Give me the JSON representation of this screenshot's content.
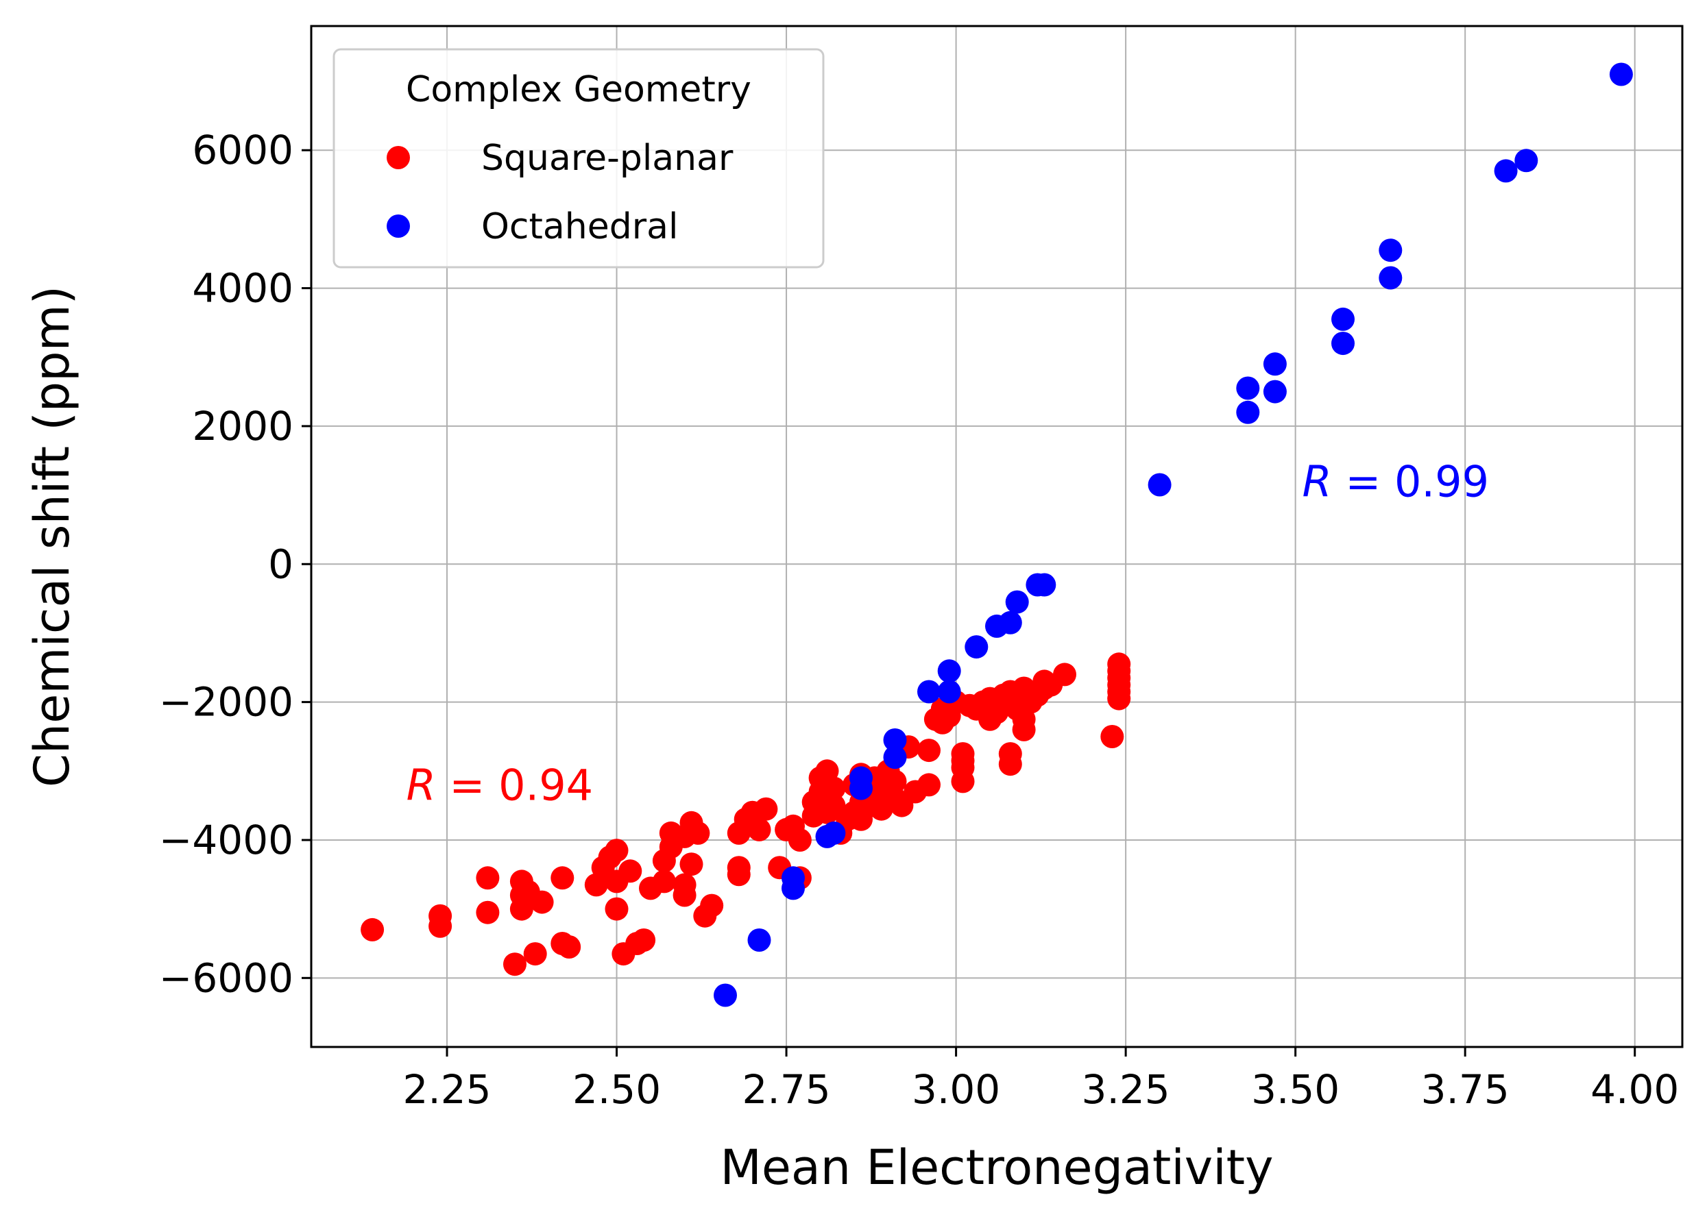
{
  "chart_data": {
    "type": "scatter",
    "xlabel": "Mean Electronegativity",
    "ylabel": "Chemical shift (ppm)",
    "xlim": [
      2.05,
      4.07
    ],
    "ylim": [
      -7000,
      7800
    ],
    "xticks": [
      2.25,
      2.5,
      2.75,
      3.0,
      3.25,
      3.5,
      3.75,
      4.0
    ],
    "xtick_labels": [
      "2.25",
      "2.50",
      "2.75",
      "3.00",
      "3.25",
      "3.50",
      "3.75",
      "4.00"
    ],
    "yticks": [
      -6000,
      -4000,
      -2000,
      0,
      2000,
      4000,
      6000
    ],
    "ytick_labels": [
      "−6000",
      "−4000",
      "−2000",
      "0",
      "2000",
      "4000",
      "6000"
    ],
    "grid": true,
    "legend": {
      "title": "Complex Geometry",
      "placement": "top-left"
    },
    "series": [
      {
        "name": "Square-planar",
        "color": "#ff0000",
        "points": [
          [
            2.14,
            -5300
          ],
          [
            2.24,
            -5100
          ],
          [
            2.24,
            -5250
          ],
          [
            2.31,
            -4550
          ],
          [
            2.31,
            -5050
          ],
          [
            2.35,
            -5800
          ],
          [
            2.36,
            -4600
          ],
          [
            2.36,
            -4800
          ],
          [
            2.36,
            -5000
          ],
          [
            2.37,
            -4750
          ],
          [
            2.38,
            -5650
          ],
          [
            2.39,
            -4900
          ],
          [
            2.42,
            -5500
          ],
          [
            2.42,
            -4550
          ],
          [
            2.43,
            -5550
          ],
          [
            2.47,
            -4650
          ],
          [
            2.48,
            -4400
          ],
          [
            2.49,
            -4250
          ],
          [
            2.5,
            -4150
          ],
          [
            2.5,
            -4600
          ],
          [
            2.5,
            -5000
          ],
          [
            2.51,
            -5650
          ],
          [
            2.52,
            -4450
          ],
          [
            2.53,
            -5500
          ],
          [
            2.54,
            -5450
          ],
          [
            2.55,
            -4700
          ],
          [
            2.57,
            -4600
          ],
          [
            2.57,
            -4300
          ],
          [
            2.58,
            -3900
          ],
          [
            2.58,
            -4100
          ],
          [
            2.6,
            -3950
          ],
          [
            2.6,
            -4650
          ],
          [
            2.6,
            -4800
          ],
          [
            2.61,
            -3750
          ],
          [
            2.61,
            -4350
          ],
          [
            2.62,
            -3900
          ],
          [
            2.63,
            -5100
          ],
          [
            2.64,
            -4950
          ],
          [
            2.68,
            -3900
          ],
          [
            2.68,
            -4400
          ],
          [
            2.68,
            -4500
          ],
          [
            2.69,
            -3700
          ],
          [
            2.7,
            -3600
          ],
          [
            2.71,
            -3850
          ],
          [
            2.72,
            -3550
          ],
          [
            2.74,
            -4400
          ],
          [
            2.75,
            -3850
          ],
          [
            2.76,
            -3800
          ],
          [
            2.77,
            -4000
          ],
          [
            2.77,
            -4550
          ],
          [
            2.79,
            -3650
          ],
          [
            2.79,
            -3450
          ],
          [
            2.8,
            -3300
          ],
          [
            2.8,
            -3100
          ],
          [
            2.81,
            -3000
          ],
          [
            2.81,
            -3600
          ],
          [
            2.82,
            -3500
          ],
          [
            2.82,
            -3250
          ],
          [
            2.83,
            -3900
          ],
          [
            2.84,
            -3700
          ],
          [
            2.85,
            -3600
          ],
          [
            2.85,
            -3200
          ],
          [
            2.86,
            -3050
          ],
          [
            2.86,
            -3450
          ],
          [
            2.86,
            -3700
          ],
          [
            2.87,
            -3300
          ],
          [
            2.88,
            -3500
          ],
          [
            2.88,
            -3100
          ],
          [
            2.89,
            -3550
          ],
          [
            2.9,
            -3250
          ],
          [
            2.9,
            -3000
          ],
          [
            2.91,
            -3400
          ],
          [
            2.91,
            -3150
          ],
          [
            2.92,
            -3500
          ],
          [
            2.93,
            -2650
          ],
          [
            2.94,
            -3300
          ],
          [
            2.96,
            -2700
          ],
          [
            2.96,
            -3200
          ],
          [
            2.97,
            -2250
          ],
          [
            2.98,
            -2100
          ],
          [
            2.98,
            -2300
          ],
          [
            2.99,
            -2200
          ],
          [
            3.0,
            -2000
          ],
          [
            3.01,
            -2750
          ],
          [
            3.01,
            -3150
          ],
          [
            3.01,
            -2950
          ],
          [
            3.01,
            -2850
          ],
          [
            3.02,
            -2050
          ],
          [
            3.03,
            -2100
          ],
          [
            3.04,
            -2000
          ],
          [
            3.05,
            -2250
          ],
          [
            3.05,
            -1950
          ],
          [
            3.06,
            -2150
          ],
          [
            3.07,
            -1950
          ],
          [
            3.07,
            -2050
          ],
          [
            3.07,
            -1900
          ],
          [
            3.08,
            -1850
          ],
          [
            3.08,
            -2750
          ],
          [
            3.08,
            -2900
          ],
          [
            3.09,
            -2000
          ],
          [
            3.09,
            -2100
          ],
          [
            3.1,
            -1800
          ],
          [
            3.1,
            -2250
          ],
          [
            3.1,
            -2400
          ],
          [
            3.11,
            -2000
          ],
          [
            3.12,
            -1900
          ],
          [
            3.13,
            -1800
          ],
          [
            3.13,
            -1700
          ],
          [
            3.14,
            -1750
          ],
          [
            3.16,
            -1600
          ],
          [
            3.23,
            -2500
          ],
          [
            3.24,
            -1450
          ],
          [
            3.24,
            -1550
          ],
          [
            3.24,
            -1650
          ],
          [
            3.24,
            -1750
          ],
          [
            3.24,
            -1850
          ],
          [
            3.24,
            -1950
          ]
        ]
      },
      {
        "name": "Octahedral",
        "color": "#0000ff",
        "points": [
          [
            2.66,
            -6250
          ],
          [
            2.71,
            -5450
          ],
          [
            2.76,
            -4550
          ],
          [
            2.76,
            -4700
          ],
          [
            2.81,
            -3950
          ],
          [
            2.82,
            -3900
          ],
          [
            2.86,
            -3100
          ],
          [
            2.86,
            -3250
          ],
          [
            2.91,
            -2550
          ],
          [
            2.91,
            -2800
          ],
          [
            2.96,
            -1850
          ],
          [
            2.99,
            -1850
          ],
          [
            2.99,
            -1550
          ],
          [
            3.03,
            -1200
          ],
          [
            3.06,
            -900
          ],
          [
            3.08,
            -850
          ],
          [
            3.09,
            -550
          ],
          [
            3.12,
            -300
          ],
          [
            3.13,
            -300
          ],
          [
            3.3,
            1150
          ],
          [
            3.43,
            2550
          ],
          [
            3.43,
            2200
          ],
          [
            3.47,
            2900
          ],
          [
            3.47,
            2500
          ],
          [
            3.57,
            3550
          ],
          [
            3.57,
            3200
          ],
          [
            3.64,
            4550
          ],
          [
            3.64,
            4150
          ],
          [
            3.81,
            5700
          ],
          [
            3.84,
            5850
          ],
          [
            3.98,
            7100
          ]
        ]
      }
    ],
    "annotations": [
      {
        "text": "R = 0.94",
        "x": 2.19,
        "y": -3200,
        "color": "#ff0000"
      },
      {
        "text": "R = 0.99",
        "x": 3.51,
        "y": 1200,
        "color": "#0000ff"
      }
    ]
  }
}
